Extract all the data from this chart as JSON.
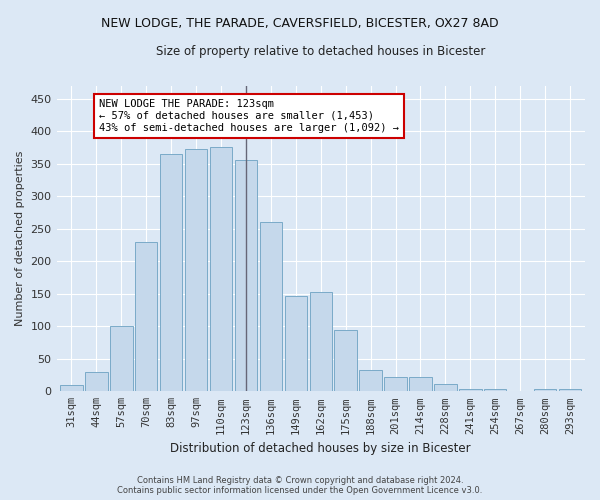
{
  "title": "NEW LODGE, THE PARADE, CAVERSFIELD, BICESTER, OX27 8AD",
  "subtitle": "Size of property relative to detached houses in Bicester",
  "xlabel": "Distribution of detached houses by size in Bicester",
  "ylabel": "Number of detached properties",
  "categories": [
    "31sqm",
    "44sqm",
    "57sqm",
    "70sqm",
    "83sqm",
    "97sqm",
    "110sqm",
    "123sqm",
    "136sqm",
    "149sqm",
    "162sqm",
    "175sqm",
    "188sqm",
    "201sqm",
    "214sqm",
    "228sqm",
    "241sqm",
    "254sqm",
    "267sqm",
    "280sqm",
    "293sqm"
  ],
  "values": [
    10,
    30,
    100,
    230,
    365,
    372,
    375,
    355,
    260,
    147,
    153,
    95,
    32,
    22,
    22,
    11,
    4,
    4,
    1,
    3,
    3
  ],
  "bar_color": "#c5d8eb",
  "bar_edge_color": "#7aaac8",
  "highlight_bar_index": 7,
  "vline_color": "#666677",
  "annotation_line1": "NEW LODGE THE PARADE: 123sqm",
  "annotation_line2": "← 57% of detached houses are smaller (1,453)",
  "annotation_line3": "43% of semi-detached houses are larger (1,092) →",
  "annotation_box_color": "#ffffff",
  "annotation_box_edgecolor": "#cc0000",
  "footnote": "Contains HM Land Registry data © Crown copyright and database right 2024.\nContains public sector information licensed under the Open Government Licence v3.0.",
  "ylim": [
    0,
    470
  ],
  "yticks": [
    0,
    50,
    100,
    150,
    200,
    250,
    300,
    350,
    400,
    450
  ],
  "background_color": "#dce8f5",
  "plot_background": "#dce8f5",
  "grid_color": "#ffffff",
  "title_fontsize": 9,
  "subtitle_fontsize": 8.5,
  "ylabel_fontsize": 8,
  "xlabel_fontsize": 8.5,
  "tick_fontsize": 7.5,
  "annot_fontsize": 7.5
}
